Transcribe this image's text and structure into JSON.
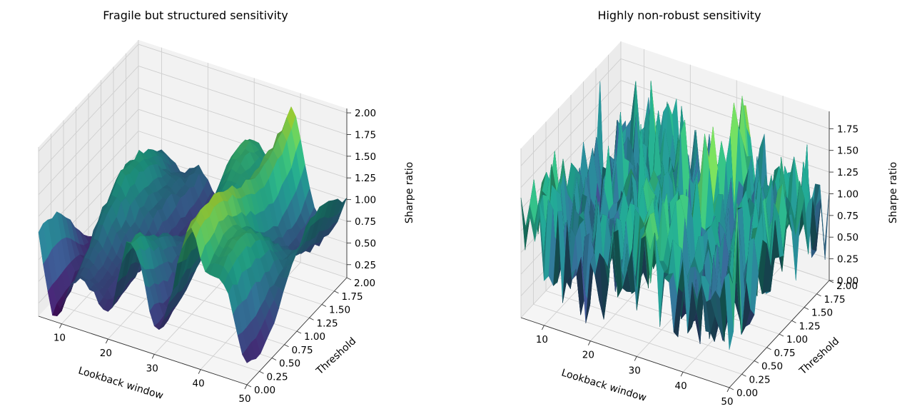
{
  "chart_data": [
    {
      "type": "surface",
      "title": "Fragile but structured sensitivity",
      "xlabel": "Lookback window",
      "ylabel": "Threshold",
      "zlabel": "Sharpe ratio",
      "xlim": [
        5,
        50
      ],
      "ylim": [
        0,
        2
      ],
      "zlim": [
        0.1,
        2.05
      ],
      "colormap": "viridis",
      "xticks": [
        "10",
        "20",
        "30",
        "40",
        "50"
      ],
      "yticks": [
        "0.00",
        "0.25",
        "0.50",
        "0.75",
        "1.00",
        "1.25",
        "1.50",
        "1.75",
        "2.00"
      ],
      "zticks": [
        "0.25",
        "0.50",
        "0.75",
        "1.00",
        "1.25",
        "1.50",
        "1.75",
        "2.00"
      ],
      "surface_peak": {
        "lookback": 38,
        "threshold": 1.5,
        "sharpe": 2.05
      },
      "surface_min": {
        "lookback": 20,
        "threshold": 0.1,
        "sharpe": 0.1
      }
    },
    {
      "type": "surface",
      "title": "Highly non-robust sensitivity",
      "xlabel": "Lookback window",
      "ylabel": "Threshold",
      "zlabel": "Sharpe ratio",
      "xlim": [
        5,
        50
      ],
      "ylim": [
        0,
        2
      ],
      "zlim": [
        0,
        1.95
      ],
      "colormap": "viridis",
      "xticks": [
        "10",
        "20",
        "30",
        "40",
        "50"
      ],
      "yticks": [
        "0.00",
        "0.25",
        "0.50",
        "0.75",
        "1.00",
        "1.25",
        "1.50",
        "1.75",
        "2.00"
      ],
      "zticks": [
        "0.00",
        "0.25",
        "0.50",
        "0.75",
        "1.00",
        "1.25",
        "1.50",
        "1.75"
      ],
      "surface_peak": {
        "lookback": 33,
        "threshold": 1.6,
        "sharpe": 1.95
      },
      "surface_min": {
        "lookback": 25,
        "threshold": 0.2,
        "sharpe": 0.0
      }
    }
  ]
}
